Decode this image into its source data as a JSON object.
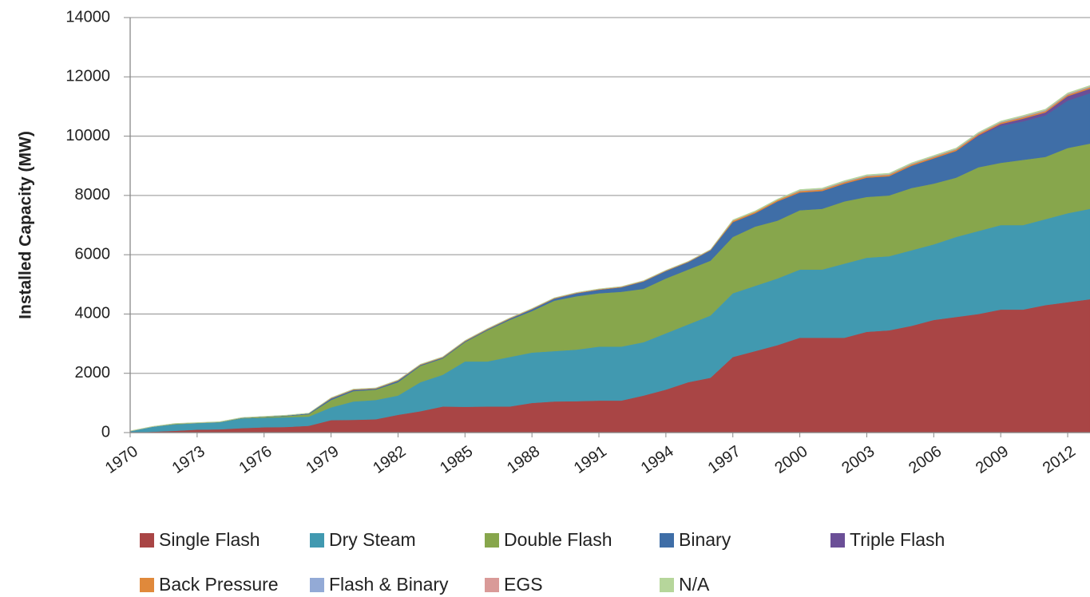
{
  "chart_data": {
    "type": "stacked_area",
    "y_label": "Installed Capacity (MW)",
    "x": [
      1970,
      1971,
      1972,
      1973,
      1974,
      1975,
      1976,
      1977,
      1978,
      1979,
      1980,
      1981,
      1982,
      1983,
      1984,
      1985,
      1986,
      1987,
      1988,
      1989,
      1990,
      1991,
      1992,
      1993,
      1994,
      1995,
      1996,
      1997,
      1998,
      1999,
      2000,
      2001,
      2002,
      2003,
      2004,
      2005,
      2006,
      2007,
      2008,
      2009,
      2010,
      2011,
      2012,
      2013
    ],
    "xlim": [
      1970,
      2013
    ],
    "xticks": [
      1970,
      1973,
      1976,
      1979,
      1982,
      1985,
      1988,
      1991,
      1994,
      1997,
      2000,
      2003,
      2006,
      2009,
      2012
    ],
    "ylim": [
      0,
      14000
    ],
    "yticks": [
      0,
      2000,
      4000,
      6000,
      8000,
      10000,
      12000,
      14000
    ],
    "grid": true,
    "series": [
      {
        "name": "Single Flash",
        "color": "#a94545",
        "values": [
          0,
          30,
          60,
          100,
          110,
          150,
          180,
          190,
          230,
          420,
          430,
          450,
          600,
          720,
          880,
          870,
          880,
          880,
          1000,
          1050,
          1060,
          1080,
          1080,
          1250,
          1450,
          1700,
          1850,
          2550,
          2750,
          2950,
          3200,
          3200,
          3200,
          3400,
          3450,
          3600,
          3800,
          3900,
          4000,
          4150,
          4150,
          4300,
          4400,
          4500
        ]
      },
      {
        "name": "Dry Steam",
        "color": "#4199b0",
        "values": [
          50,
          170,
          220,
          220,
          240,
          330,
          320,
          330,
          310,
          430,
          620,
          650,
          650,
          980,
          1070,
          1530,
          1520,
          1670,
          1700,
          1700,
          1740,
          1820,
          1820,
          1800,
          1900,
          1950,
          2100,
          2150,
          2200,
          2250,
          2300,
          2300,
          2500,
          2500,
          2500,
          2550,
          2550,
          2700,
          2800,
          2850,
          2850,
          2900,
          3000,
          3050
        ]
      },
      {
        "name": "Double Flash",
        "color": "#87a64c",
        "values": [
          0,
          0,
          20,
          10,
          10,
          10,
          30,
          40,
          80,
          250,
          350,
          350,
          450,
          550,
          550,
          650,
          1050,
          1250,
          1400,
          1700,
          1800,
          1800,
          1850,
          1800,
          1850,
          1850,
          1850,
          1900,
          2000,
          1950,
          2000,
          2050,
          2100,
          2050,
          2050,
          2100,
          2050,
          2000,
          2150,
          2100,
          2200,
          2100,
          2200,
          2200
        ]
      },
      {
        "name": "Binary",
        "color": "#3f6ea7",
        "values": [
          0,
          0,
          0,
          0,
          0,
          10,
          10,
          20,
          30,
          50,
          40,
          30,
          50,
          30,
          30,
          30,
          30,
          40,
          60,
          70,
          100,
          120,
          150,
          250,
          250,
          250,
          350,
          500,
          450,
          650,
          600,
          600,
          600,
          650,
          650,
          750,
          850,
          900,
          1050,
          1250,
          1300,
          1400,
          1600,
          1700
        ]
      },
      {
        "name": "Triple Flash",
        "color": "#6b4f97",
        "values": [
          0,
          0,
          0,
          0,
          0,
          0,
          0,
          0,
          0,
          0,
          0,
          0,
          0,
          0,
          0,
          0,
          0,
          0,
          0,
          0,
          0,
          0,
          0,
          0,
          0,
          0,
          0,
          0,
          0,
          0,
          0,
          0,
          0,
          0,
          0,
          0,
          0,
          0,
          30,
          60,
          90,
          100,
          150,
          150
        ]
      },
      {
        "name": "Back Pressure",
        "color": "#e0893b",
        "values": [
          0,
          0,
          0,
          0,
          0,
          0,
          0,
          0,
          0,
          20,
          20,
          20,
          20,
          20,
          20,
          20,
          20,
          20,
          20,
          20,
          20,
          20,
          20,
          20,
          20,
          20,
          20,
          50,
          50,
          50,
          50,
          50,
          50,
          50,
          50,
          50,
          50,
          50,
          50,
          50,
          50,
          50,
          50,
          50
        ]
      },
      {
        "name": "Flash & Binary",
        "color": "#93aad6",
        "values": [
          0,
          0,
          0,
          0,
          0,
          0,
          0,
          0,
          0,
          0,
          0,
          0,
          0,
          0,
          0,
          0,
          0,
          0,
          0,
          0,
          0,
          0,
          0,
          0,
          0,
          0,
          0,
          0,
          0,
          0,
          20,
          20,
          20,
          20,
          20,
          20,
          20,
          20,
          20,
          20,
          20,
          20,
          20,
          20
        ]
      },
      {
        "name": "EGS",
        "color": "#d99a98",
        "values": [
          0,
          0,
          0,
          0,
          0,
          0,
          0,
          0,
          0,
          0,
          0,
          0,
          0,
          0,
          0,
          0,
          0,
          0,
          0,
          0,
          0,
          0,
          0,
          0,
          0,
          0,
          0,
          0,
          0,
          0,
          0,
          0,
          0,
          0,
          0,
          0,
          0,
          0,
          0,
          0,
          10,
          10,
          10,
          10
        ]
      },
      {
        "name": "N/A",
        "color": "#b6d69b",
        "values": [
          10,
          10,
          10,
          10,
          10,
          10,
          10,
          10,
          10,
          10,
          10,
          10,
          10,
          10,
          10,
          10,
          10,
          10,
          10,
          10,
          10,
          10,
          10,
          10,
          10,
          10,
          10,
          30,
          30,
          30,
          30,
          30,
          30,
          30,
          30,
          30,
          30,
          30,
          30,
          30,
          30,
          30,
          30,
          30
        ]
      }
    ]
  }
}
